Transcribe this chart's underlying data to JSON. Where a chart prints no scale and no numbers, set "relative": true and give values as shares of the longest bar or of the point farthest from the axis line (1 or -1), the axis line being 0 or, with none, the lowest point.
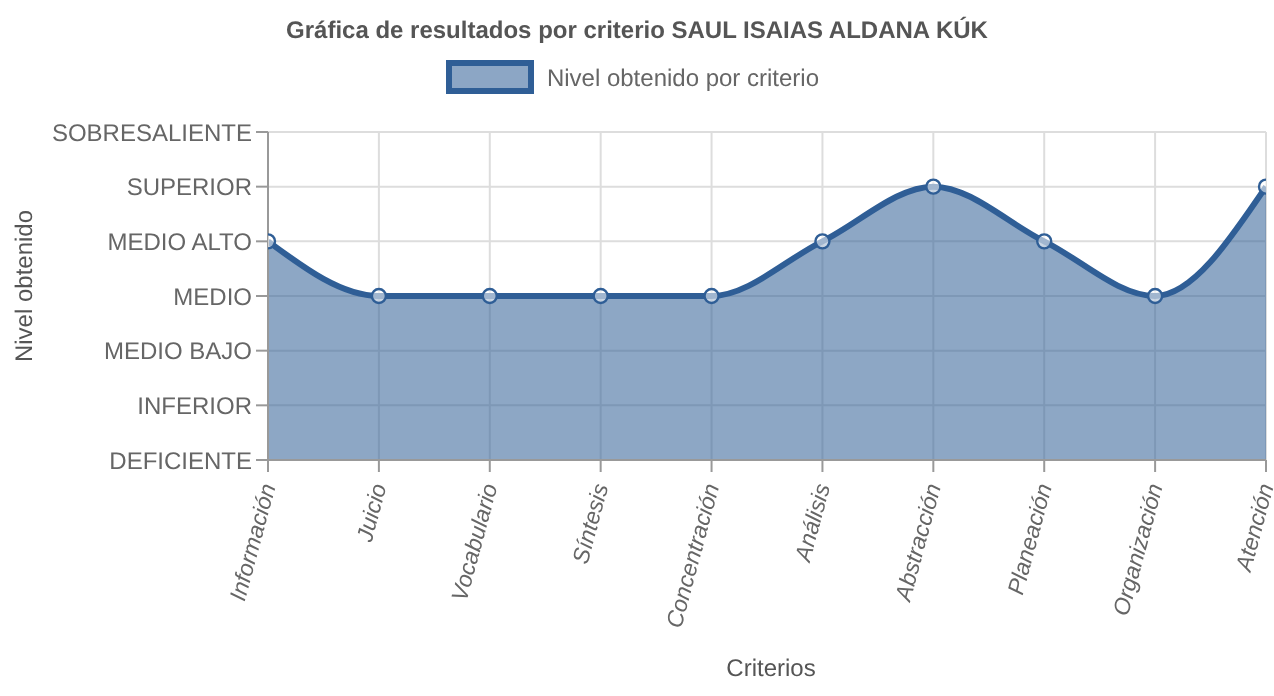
{
  "chart_data": {
    "type": "area",
    "relative": true,
    "title": "Gráfica de resultados por criterio SAUL ISAIAS ALDANA KÚK",
    "xlabel": "Criterios",
    "annotations": [
      "Nivel obtenido"
    ],
    "categories": [
      "Información",
      "Juicio",
      "Vocabulario",
      "Síntesis",
      "Concentración",
      "Análisis",
      "Abstracción",
      "Planeación",
      "Organización",
      "Atención"
    ],
    "y_categories": [
      "SOBRESALIENTE",
      "SUPERIOR",
      "MEDIO ALTO",
      "MEDIO",
      "MEDIO BAJO",
      "INFERIOR",
      "DEFICIENTE"
    ],
    "series": [
      {
        "name": "Nivel obtenido por criterio",
        "color": "#2f5e96",
        "values": [
          0.8,
          0.6,
          0.6,
          0.6,
          0.6,
          0.8,
          1,
          0.8,
          0.6,
          1
        ]
      }
    ],
    "grid": true,
    "legend": "top",
    "marker": "circle",
    "line_style": "solid"
  }
}
